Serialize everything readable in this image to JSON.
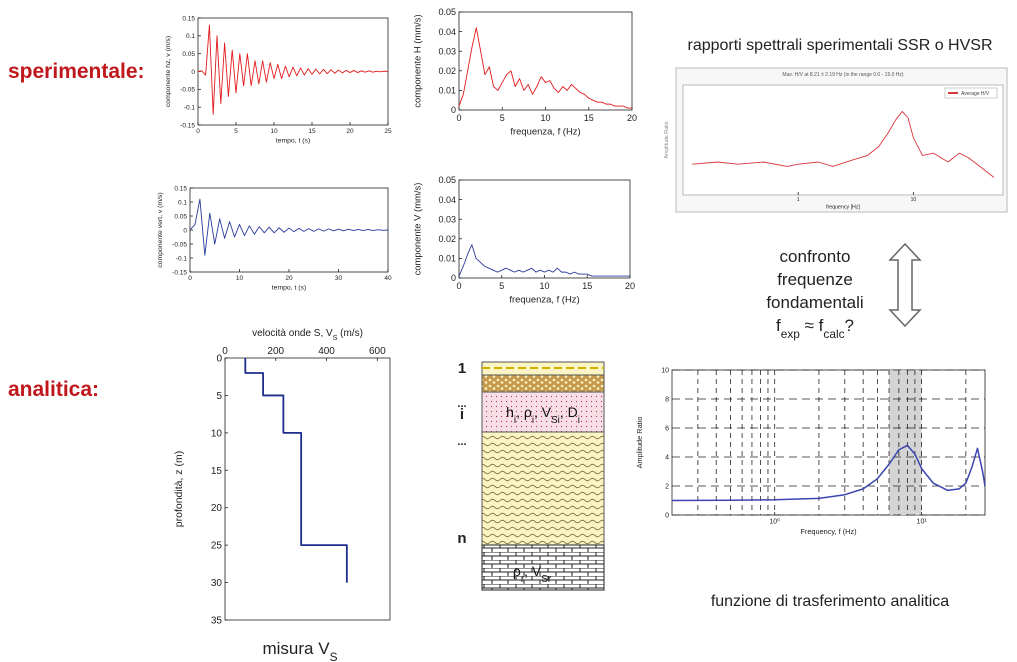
{
  "section_labels": [
    "sperimentale:",
    "analitica:"
  ],
  "hvsr_heading": "rapporti spettrali sperimentali SSR o HVSR",
  "comparison": {
    "lines": [
      "confronto",
      "frequenze",
      "fondamentali"
    ],
    "formula": [
      "f",
      "exp",
      " ≈ f",
      "calc",
      "?"
    ]
  },
  "transfer_caption": "funzione di trasferimento analitica",
  "vs_caption": [
    "misura V",
    "S"
  ],
  "soil_column": {
    "layer_indices": [
      "1",
      "...",
      "i",
      "...",
      "n"
    ],
    "layer_props": [
      "h",
      "i",
      ", ρ",
      "i",
      ", V",
      "Si",
      ", D",
      "i"
    ],
    "bedrock_props": [
      "ρ",
      "r",
      ", V",
      "Sr"
    ]
  },
  "chart_data": [
    {
      "type": "line",
      "xlabel": "tempo, t (s)",
      "ylabel": "componente hz, v (m/s)",
      "x": [
        0,
        0.5,
        1,
        1.5,
        2,
        2.5,
        3,
        3.5,
        4,
        4.5,
        5,
        5.5,
        6,
        6.5,
        7,
        7.5,
        8,
        8.5,
        9,
        9.5,
        10,
        10.5,
        11,
        11.5,
        12,
        12.5,
        13,
        13.5,
        14,
        14.5,
        15,
        15.5,
        16,
        16.5,
        17,
        17.5,
        18,
        18.5,
        19,
        19.5,
        20,
        20.5,
        21,
        21.5,
        22,
        22.5,
        23,
        23.5,
        24,
        24.5,
        25
      ],
      "series": [
        {
          "color": "#e31a1c",
          "values": [
            0,
            0.002,
            -0.01,
            0.13,
            -0.12,
            0.1,
            -0.09,
            0.08,
            -0.07,
            0.06,
            -0.06,
            0.05,
            -0.04,
            0.05,
            -0.04,
            0.03,
            -0.035,
            0.03,
            -0.03,
            0.025,
            -0.02,
            0.02,
            -0.02,
            0.015,
            -0.015,
            0.012,
            -0.012,
            0.01,
            -0.01,
            0.008,
            -0.008,
            0.007,
            -0.007,
            0.006,
            -0.006,
            0.005,
            -0.005,
            0.004,
            -0.004,
            0.003,
            -0.003,
            0.003,
            -0.003,
            0.002,
            -0.002,
            0.002,
            -0.002,
            0.001,
            -0.001,
            0.001,
            0
          ]
        }
      ],
      "xlim": [
        0,
        25
      ],
      "xticks": [
        0,
        5,
        10,
        15,
        20,
        25
      ],
      "ylim": [
        -0.15,
        0.15
      ],
      "yticks": [
        -0.15,
        -0.1,
        -0.05,
        0,
        0.05,
        0.1,
        0.15
      ]
    },
    {
      "type": "line",
      "xlabel": "frequenza, f (Hz)",
      "ylabel": "componente H (mm/s)",
      "x": [
        0,
        0.5,
        1,
        1.5,
        2,
        2.5,
        3,
        3.5,
        4,
        4.5,
        5,
        5.5,
        6,
        6.5,
        7,
        7.5,
        8,
        8.5,
        9,
        9.5,
        10,
        10.5,
        11,
        11.5,
        12,
        12.5,
        13,
        13.5,
        14,
        14.5,
        15,
        15.5,
        16,
        16.5,
        17,
        17.5,
        18,
        18.5,
        19,
        19.5,
        20
      ],
      "series": [
        {
          "color": "#e31a1c",
          "values": [
            0.002,
            0.008,
            0.02,
            0.032,
            0.042,
            0.03,
            0.018,
            0.022,
            0.012,
            0.01,
            0.014,
            0.018,
            0.02,
            0.012,
            0.016,
            0.01,
            0.013,
            0.008,
            0.012,
            0.017,
            0.014,
            0.015,
            0.011,
            0.009,
            0.012,
            0.01,
            0.013,
            0.011,
            0.009,
            0.008,
            0.006,
            0.005,
            0.004,
            0.004,
            0.003,
            0.003,
            0.002,
            0.002,
            0.002,
            0.001,
            0.001
          ]
        }
      ],
      "xlim": [
        0,
        20
      ],
      "xticks": [
        0,
        5,
        10,
        15,
        20
      ],
      "ylim": [
        0,
        0.05
      ],
      "yticks": [
        0,
        0.01,
        0.02,
        0.03,
        0.04,
        0.05
      ]
    },
    {
      "type": "line",
      "xlabel": "tempo, t (s)",
      "ylabel": "componente vert, v (m/s)",
      "x": [
        0,
        1,
        2,
        3,
        4,
        5,
        6,
        7,
        8,
        9,
        10,
        11,
        12,
        13,
        14,
        15,
        16,
        17,
        18,
        19,
        20,
        21,
        22,
        23,
        24,
        25,
        26,
        27,
        28,
        29,
        30,
        31,
        32,
        33,
        34,
        35,
        36,
        37,
        38,
        39,
        40
      ],
      "series": [
        {
          "color": "#2a3a9c",
          "values": [
            0,
            0.02,
            0.11,
            -0.09,
            0.06,
            -0.05,
            0.04,
            -0.03,
            0.03,
            -0.025,
            0.02,
            -0.02,
            0.015,
            -0.015,
            0.012,
            -0.01,
            0.01,
            -0.01,
            0.008,
            -0.008,
            0.007,
            -0.006,
            0.006,
            -0.005,
            0.005,
            -0.005,
            0.004,
            -0.004,
            0.004,
            -0.003,
            0.003,
            -0.003,
            0.003,
            -0.002,
            0.002,
            -0.002,
            0.002,
            -0.002,
            0.001,
            -0.001,
            0
          ]
        }
      ],
      "xlim": [
        0,
        40
      ],
      "xticks": [
        0,
        10,
        20,
        30,
        40
      ],
      "ylim": [
        -0.15,
        0.15
      ],
      "yticks": [
        -0.15,
        -0.1,
        -0.05,
        0,
        0.05,
        0.1,
        0.15
      ]
    },
    {
      "type": "line",
      "xlabel": "frequenza, f (Hz)",
      "ylabel": "componente V (mm/s)",
      "x": [
        0,
        0.5,
        1,
        1.5,
        2,
        2.5,
        3,
        3.5,
        4,
        4.5,
        5,
        5.5,
        6,
        6.5,
        7,
        7.5,
        8,
        8.5,
        9,
        9.5,
        10,
        10.5,
        11,
        11.5,
        12,
        12.5,
        13,
        13.5,
        14,
        14.5,
        15,
        15.5,
        16,
        16.5,
        17,
        17.5,
        18,
        18.5,
        19,
        19.5,
        20
      ],
      "series": [
        {
          "color": "#2a3a9c",
          "values": [
            0.001,
            0.006,
            0.012,
            0.017,
            0.01,
            0.008,
            0.006,
            0.005,
            0.004,
            0.003,
            0.004,
            0.005,
            0.004,
            0.003,
            0.004,
            0.003,
            0.004,
            0.005,
            0.003,
            0.004,
            0.003,
            0.004,
            0.003,
            0.005,
            0.003,
            0.003,
            0.002,
            0.003,
            0.002,
            0.002,
            0.002,
            0.001,
            0.001,
            0.001,
            0.001,
            0.001,
            0.001,
            0.001,
            0.001,
            0.001,
            0.001
          ]
        }
      ],
      "xlim": [
        0,
        20
      ],
      "xticks": [
        0,
        5,
        10,
        15,
        20
      ],
      "ylim": [
        0,
        0.05
      ],
      "yticks": [
        0,
        0.01,
        0.02,
        0.03,
        0.04,
        0.05
      ]
    },
    {
      "type": "line",
      "title": "Max. H/V at 8.21 ± 2.19 Hz (in the range 0.0 - 15.0 Hz)",
      "xlabel": "frequency [Hz]",
      "ylabel": "Amplitude Ratio",
      "x": [
        0.12,
        0.2,
        0.3,
        0.5,
        0.8,
        1,
        1.5,
        2,
        3,
        4,
        5,
        6,
        7,
        8,
        9,
        10,
        12,
        15,
        20,
        25,
        30,
        40,
        50
      ],
      "series": [
        {
          "name": "Average H/V",
          "color": "#d9343c",
          "values": [
            1.4,
            1.5,
            1.4,
            1.5,
            1.3,
            1.4,
            1.5,
            1.3,
            1.6,
            1.8,
            2.2,
            2.8,
            3.4,
            3.8,
            3.5,
            2.6,
            1.8,
            1.9,
            1.5,
            1.9,
            1.7,
            1.2,
            0.8
          ]
        }
      ],
      "xlog": true,
      "xlim": [
        0.1,
        60
      ],
      "xticks": [
        1,
        10
      ],
      "ylim": [
        0,
        5
      ],
      "legend": "top-right"
    },
    {
      "type": "line",
      "xlabel": [
        "velocità onde S, V",
        "S",
        " (m/s)"
      ],
      "ylabel": "profondità, z (m)",
      "x": [
        80,
        80,
        150,
        150,
        230,
        230,
        300,
        300,
        480,
        480
      ],
      "series": [
        {
          "color": "#1f2d8a",
          "values": [
            0,
            2,
            2,
            5,
            5,
            10,
            10,
            25,
            25,
            30
          ]
        }
      ],
      "xlim": [
        0,
        650
      ],
      "xticks": [
        0,
        200,
        400,
        600
      ],
      "ylim": [
        0,
        35
      ],
      "yticks": [
        0,
        5,
        10,
        15,
        20,
        25,
        30,
        35
      ],
      "x_axis_top": true,
      "y_inverted": true
    },
    {
      "type": "line",
      "xlabel": "Frequency, f (Hz)",
      "ylabel": "Amplitude Ratio",
      "x": [
        0.2,
        0.5,
        1,
        2,
        3,
        4,
        5,
        6,
        7,
        8,
        9,
        10,
        12,
        15,
        18,
        20,
        22,
        24,
        26,
        27
      ],
      "series": [
        {
          "color": "#3a45b0",
          "values": [
            1,
            1.02,
            1.05,
            1.15,
            1.4,
            1.8,
            2.5,
            3.5,
            4.5,
            4.8,
            4.2,
            3.2,
            2.2,
            1.7,
            1.8,
            2.2,
            3.3,
            4.6,
            3,
            2
          ]
        }
      ],
      "xlog": true,
      "xlim": [
        0.2,
        27
      ],
      "xticks": [
        {
          "value": 1,
          "label": "10⁰"
        },
        {
          "value": 10,
          "label": "10¹"
        }
      ],
      "x_minor_ticks": [
        0.3,
        0.4,
        0.5,
        0.6,
        0.7,
        0.8,
        0.9,
        2,
        3,
        4,
        5,
        6,
        7,
        8,
        9,
        20
      ],
      "ylim": [
        0,
        10
      ],
      "yticks": [
        0,
        2,
        4,
        6,
        8,
        10
      ],
      "grid": true,
      "highlight_band": [
        6,
        10
      ]
    }
  ]
}
